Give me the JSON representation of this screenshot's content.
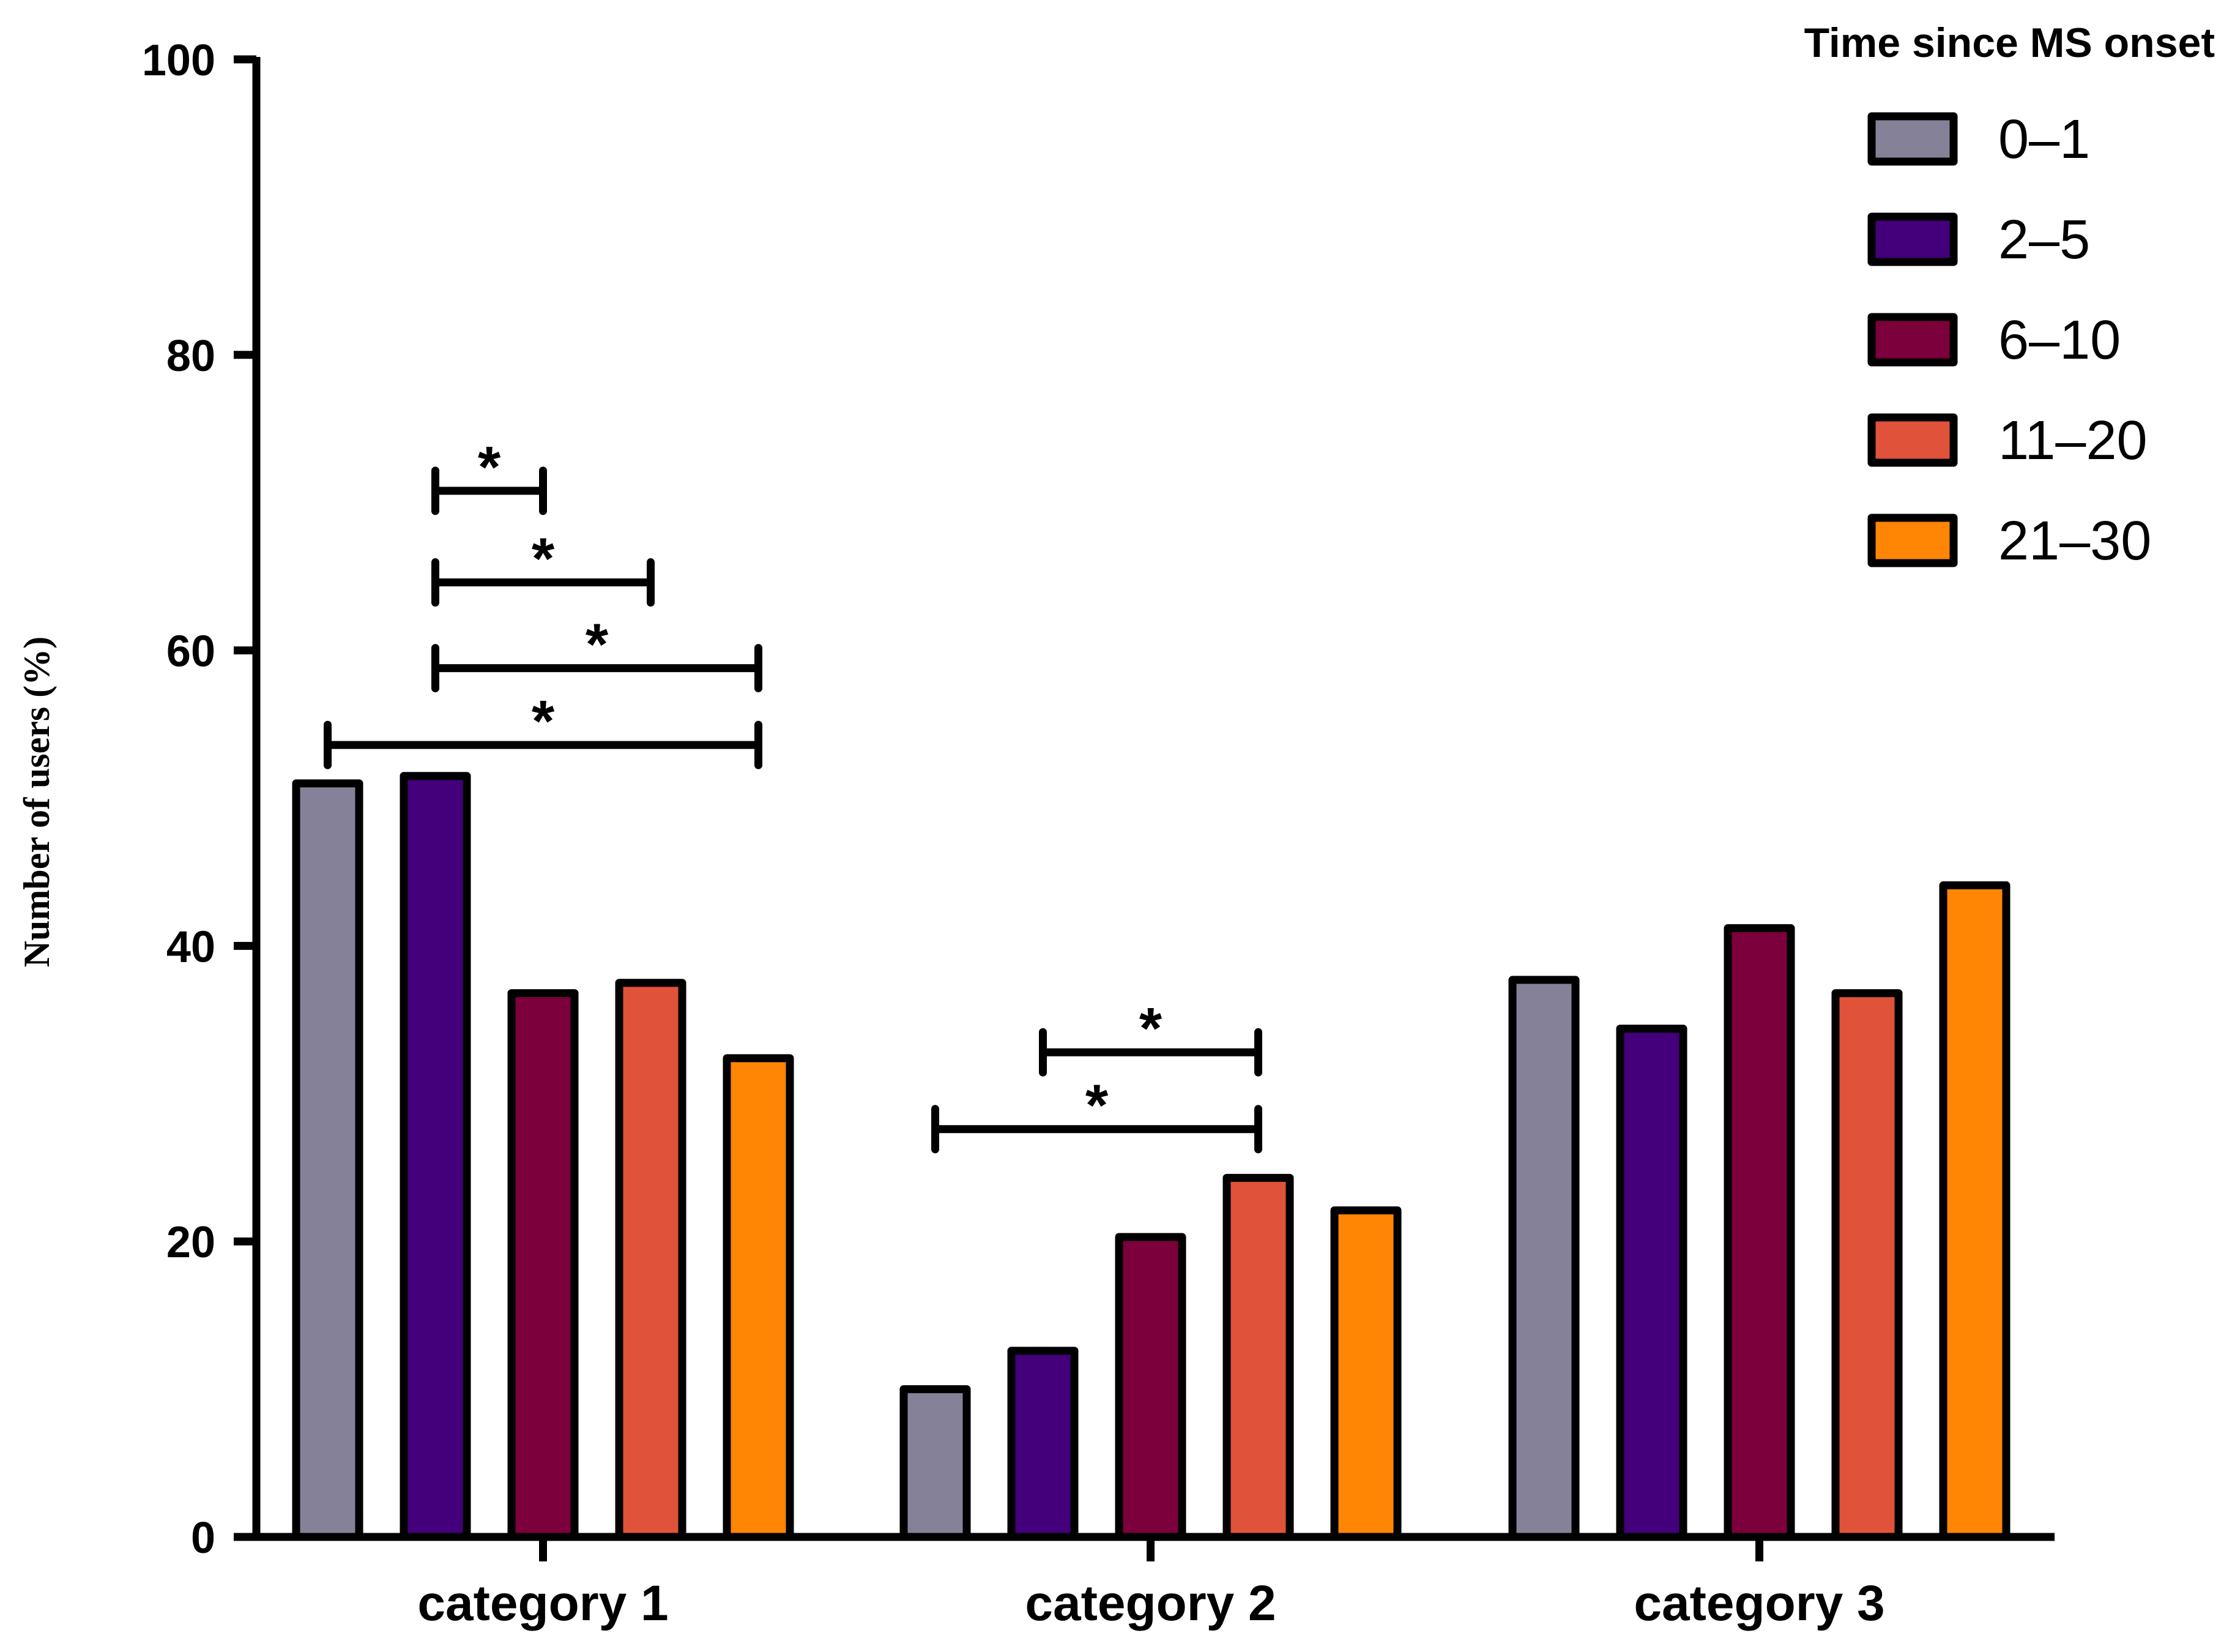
{
  "chart_data": {
    "type": "bar",
    "title": "",
    "xlabel": "",
    "ylabel": "Number of users (%)",
    "ylim": [
      0,
      100
    ],
    "yticks": [
      0,
      20,
      40,
      60,
      80,
      100
    ],
    "grid": false,
    "categories": [
      "category 1",
      "category 2",
      "category 3"
    ],
    "legend": {
      "title": "Time since MS onset",
      "placement": "top-right"
    },
    "series": [
      {
        "name": "0–1",
        "color": "#848199",
        "values": [
          51.0,
          10.0,
          37.7
        ]
      },
      {
        "name": "2–5",
        "color": "#43007a",
        "values": [
          51.5,
          12.6,
          34.4
        ]
      },
      {
        "name": "6–10",
        "color": "#7c003c",
        "values": [
          36.8,
          20.3,
          41.2
        ]
      },
      {
        "name": "11–20",
        "color": "#e0523a",
        "values": [
          37.5,
          24.3,
          36.8
        ]
      },
      {
        "name": "21–30",
        "color": "#ff8505",
        "values": [
          32.4,
          22.1,
          44.1
        ]
      }
    ],
    "significance": [
      {
        "category": 0,
        "from_series": 1,
        "to_series": 2,
        "y": 70.8,
        "label": "*"
      },
      {
        "category": 0,
        "from_series": 1,
        "to_series": 3,
        "y": 64.6,
        "label": "*"
      },
      {
        "category": 0,
        "from_series": 1,
        "to_series": 4,
        "y": 58.8,
        "label": "*"
      },
      {
        "category": 0,
        "from_series": 0,
        "to_series": 4,
        "y": 53.6,
        "label": "*"
      },
      {
        "category": 1,
        "from_series": 1,
        "to_series": 3,
        "y": 32.8,
        "label": "*"
      },
      {
        "category": 1,
        "from_series": 0,
        "to_series": 3,
        "y": 27.6,
        "label": "*"
      }
    ]
  }
}
